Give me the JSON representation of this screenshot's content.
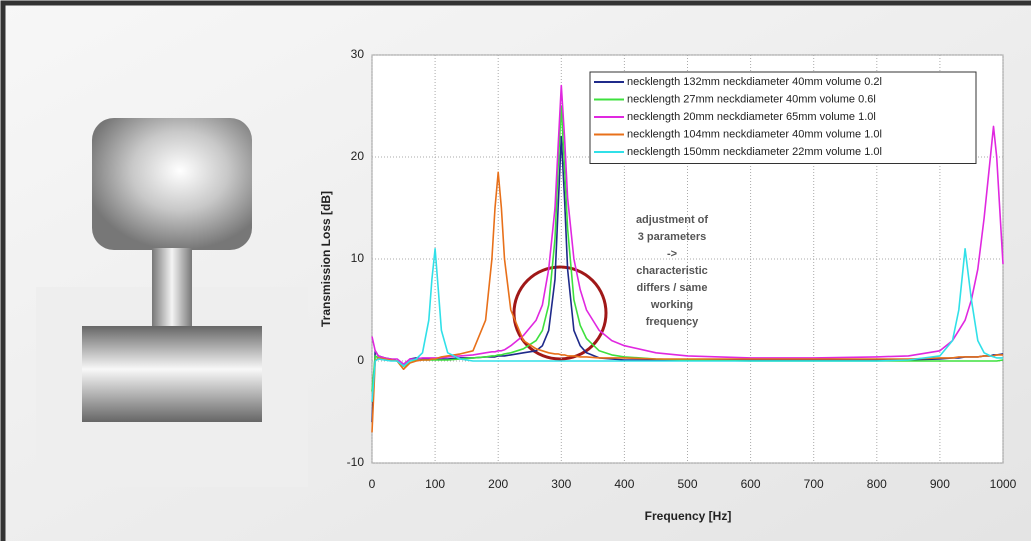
{
  "chart_data": {
    "type": "line",
    "xlabel": "Frequency [Hz]",
    "ylabel": "Transmission Loss [dB]",
    "annotation": [
      "adjustment of",
      "3 parameters",
      "->",
      "characteristic",
      "differs / same",
      "working",
      "frequency"
    ],
    "xlim": [
      0,
      1000
    ],
    "xticks": [
      0,
      100,
      200,
      300,
      400,
      500,
      600,
      700,
      800,
      900,
      1000
    ],
    "ylim": [
      -10,
      30
    ],
    "yticks": [
      -10,
      0,
      10,
      20,
      30
    ],
    "grid": true,
    "legend": "upper right",
    "x": [
      0,
      5,
      10,
      20,
      30,
      40,
      50,
      60,
      70,
      80,
      90,
      95,
      100,
      105,
      110,
      120,
      140,
      160,
      180,
      190,
      195,
      200,
      205,
      210,
      220,
      240,
      260,
      270,
      280,
      290,
      295,
      300,
      305,
      310,
      320,
      330,
      340,
      360,
      380,
      400,
      450,
      500,
      600,
      700,
      800,
      850,
      900,
      920,
      930,
      940,
      950,
      960,
      970,
      980,
      985,
      990,
      1000
    ],
    "series": [
      {
        "name": "necklength 132mm  neckdiameter 40mm volume 0.2l",
        "color": "#1f2a8a",
        "values": [
          -6,
          1,
          0.5,
          0.3,
          0.2,
          0,
          -0.5,
          0.2,
          0.3,
          0.2,
          0.2,
          0.2,
          0.2,
          0.2,
          0.2,
          0.2,
          0.3,
          0.3,
          0.4,
          0.4,
          0.4,
          0.5,
          0.5,
          0.5,
          0.6,
          0.8,
          1,
          1.5,
          3,
          8,
          15,
          22,
          16,
          9,
          3,
          1.5,
          0.8,
          0.3,
          0.2,
          0.1,
          0.1,
          0.1,
          0.1,
          0.1,
          0.1,
          0.1,
          0.2,
          0.3,
          0.3,
          0.4,
          0.4,
          0.4,
          0.5,
          0.5,
          0.6,
          0.6,
          0.7
        ]
      },
      {
        "name": "necklength 27mm neckdiameter 40mm volume 0.6l",
        "color": "#3ee03e",
        "values": [
          -3,
          0.5,
          0.3,
          0.2,
          0.1,
          0,
          -0.8,
          0,
          0.1,
          0.1,
          0.1,
          0.1,
          0.1,
          0.1,
          0.1,
          0.1,
          0.2,
          0.3,
          0.4,
          0.5,
          0.5,
          0.6,
          0.6,
          0.7,
          0.8,
          1.2,
          2,
          3,
          5.5,
          12,
          19,
          25,
          19,
          13,
          6,
          3.5,
          2.2,
          1,
          0.6,
          0.4,
          0.2,
          0.1,
          0,
          0,
          0,
          0,
          0,
          0,
          0,
          0,
          0,
          0,
          0,
          0,
          0,
          0,
          0.1
        ]
      },
      {
        "name": "necklength 20mm neckdiameter 65mm volume 1.0l",
        "color": "#e028e0",
        "values": [
          2.4,
          1,
          0.5,
          0.3,
          0.2,
          0.2,
          -0.3,
          0.2,
          0.2,
          0.3,
          0.3,
          0.3,
          0.3,
          0.3,
          0.3,
          0.4,
          0.5,
          0.6,
          0.8,
          0.9,
          0.9,
          1,
          1,
          1.1,
          1.5,
          2.5,
          4,
          5.5,
          9,
          15,
          21,
          27,
          22,
          16,
          10,
          7,
          5,
          3,
          2,
          1.5,
          0.8,
          0.5,
          0.3,
          0.3,
          0.4,
          0.5,
          1,
          2,
          3,
          4,
          6,
          9,
          14,
          20,
          23,
          20,
          9.5
        ]
      },
      {
        "name": "necklength 104mm neckdiameter 40mm volume 1.0l",
        "color": "#e8701a",
        "values": [
          -7,
          0,
          0.3,
          0.2,
          0.1,
          0,
          -0.8,
          -0.2,
          0,
          0.1,
          0.1,
          0.2,
          0.2,
          0.3,
          0.4,
          0.5,
          0.7,
          1,
          4,
          10,
          15,
          18.5,
          15,
          10,
          5,
          2,
          1.2,
          1,
          0.8,
          0.7,
          0.7,
          0.6,
          0.6,
          0.5,
          0.5,
          0.4,
          0.4,
          0.3,
          0.3,
          0.3,
          0.2,
          0.2,
          0.2,
          0.2,
          0.2,
          0.2,
          0.3,
          0.3,
          0.4,
          0.4,
          0.4,
          0.4,
          0.5,
          0.5,
          0.5,
          0.6,
          0.6
        ]
      },
      {
        "name": "necklength 150mm neckdiameter 22mm volume 1.0l",
        "color": "#30e0e8",
        "values": [
          -4,
          0,
          0.2,
          0.1,
          0,
          0,
          -0.5,
          0,
          0.2,
          0.8,
          4,
          8,
          11,
          7,
          3,
          0.8,
          0.2,
          0,
          0,
          0,
          0,
          0,
          0,
          0,
          0,
          0,
          0,
          0,
          0,
          0,
          0,
          0,
          0,
          0,
          0,
          0,
          0,
          0,
          0,
          0,
          0,
          0,
          0,
          0,
          0,
          0.1,
          0.5,
          2,
          5,
          11,
          6,
          2,
          0.8,
          0.5,
          0.4,
          0.3,
          0.3
        ]
      }
    ]
  }
}
